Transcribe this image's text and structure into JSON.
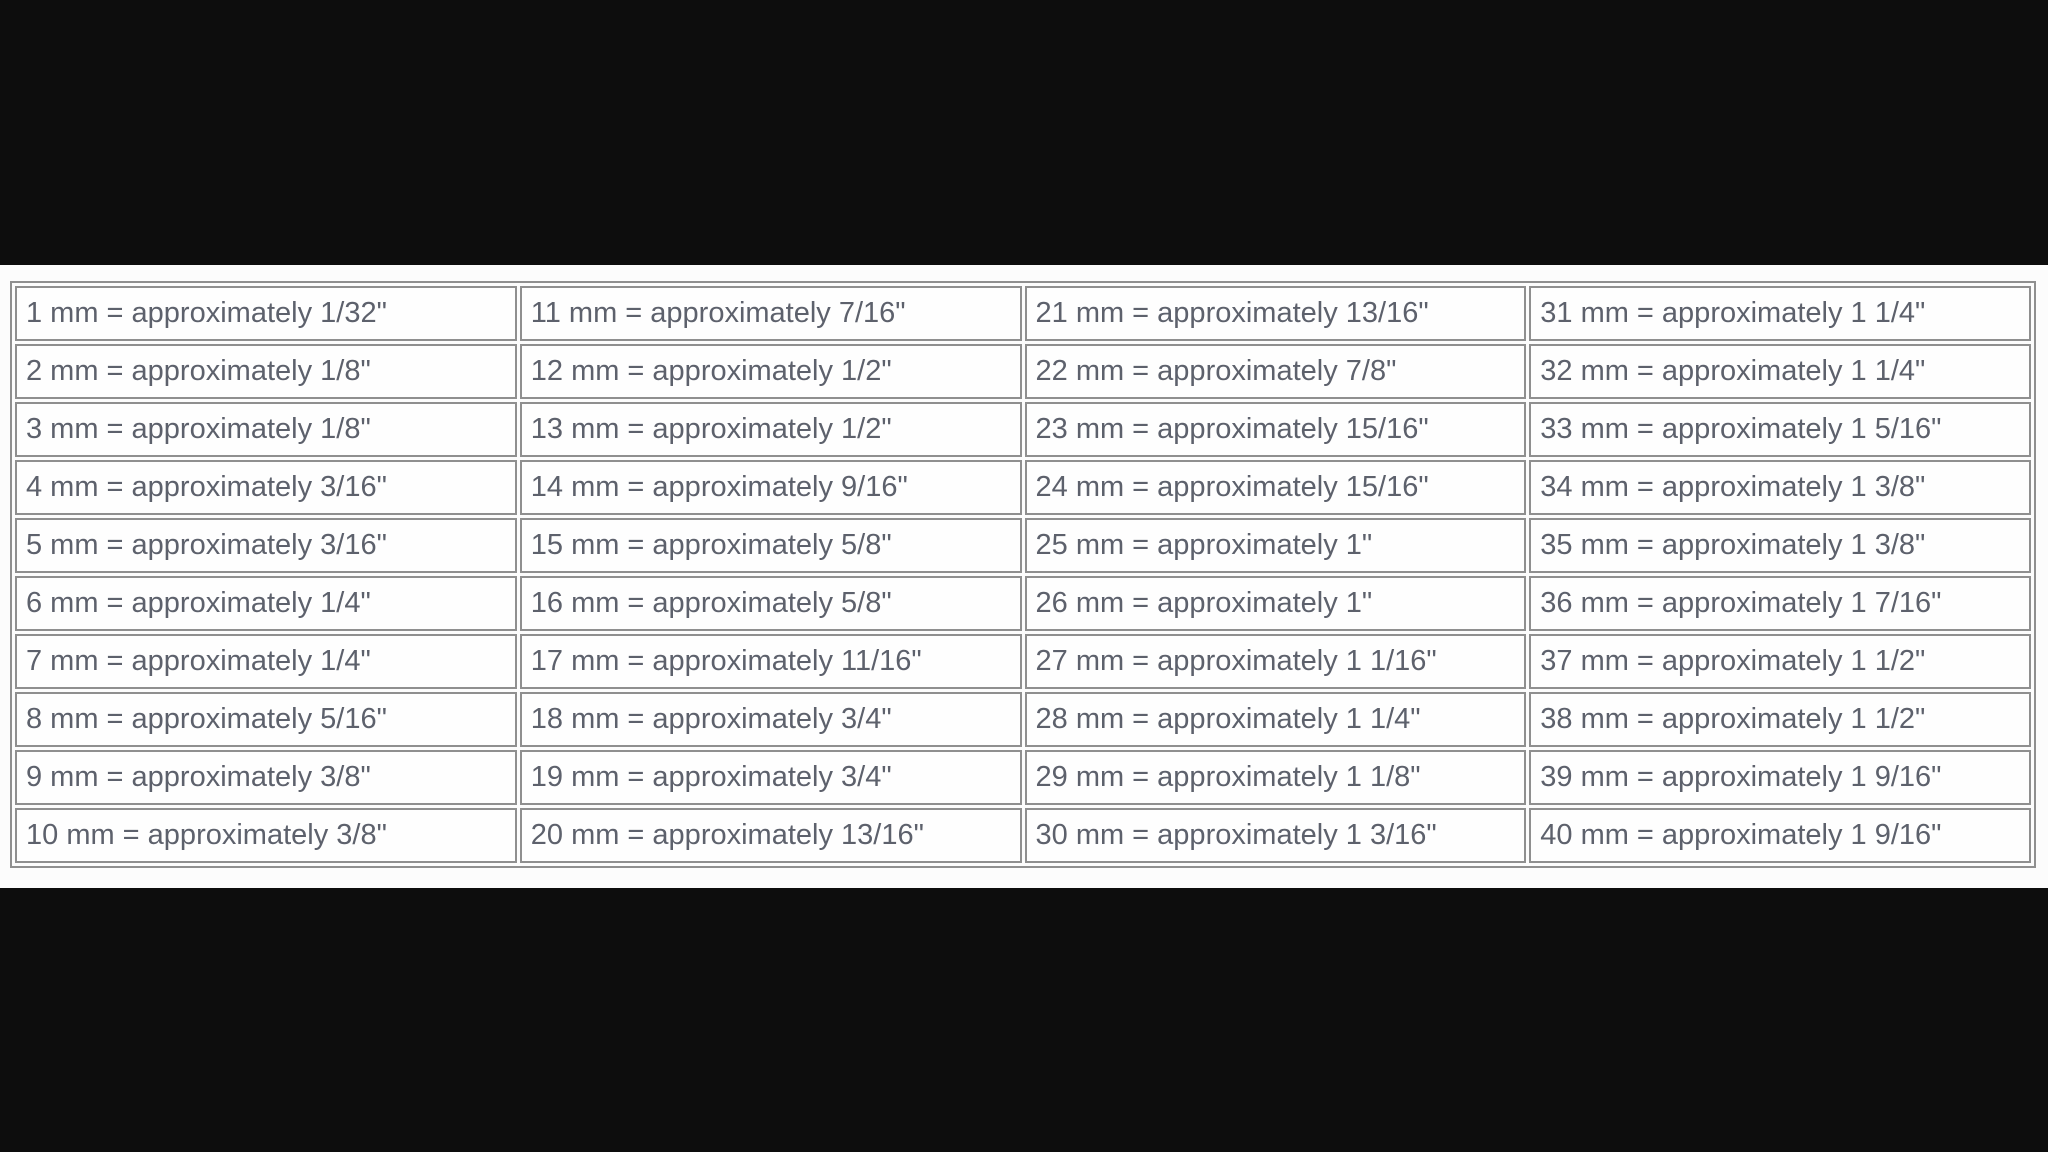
{
  "page": {
    "background_color": "#0d0d0d",
    "sheet_background_color": "#fcfcfc"
  },
  "conversion_table": {
    "border_color": "#8f8f8f",
    "cell_background_color": "#fefefe",
    "text_color": "#5d616c",
    "columns": [
      {
        "cells": [
          "1 mm = approximately 1/32\"",
          "2 mm = approximately 1/8\"",
          "3 mm = approximately 1/8\"",
          "4 mm = approximately 3/16\"",
          "5 mm = approximately 3/16\"",
          "6 mm = approximately 1/4\"",
          "7 mm = approximately 1/4\"",
          "8 mm = approximately 5/16\"",
          "9 mm = approximately 3/8\"",
          "10 mm = approximately 3/8\""
        ]
      },
      {
        "cells": [
          "11 mm = approximately 7/16\"",
          "12 mm = approximately 1/2\"",
          "13 mm = approximately 1/2\"",
          "14 mm = approximately 9/16\"",
          "15 mm = approximately 5/8\"",
          "16 mm = approximately 5/8\"",
          "17 mm = approximately 11/16\"",
          "18 mm = approximately 3/4\"",
          "19 mm = approximately 3/4\"",
          "20 mm = approximately 13/16\""
        ]
      },
      {
        "cells": [
          "21 mm = approximately 13/16\"",
          "22 mm = approximately 7/8\"",
          "23 mm = approximately 15/16\"",
          "24 mm = approximately 15/16\"",
          "25 mm = approximately 1\"",
          "26 mm = approximately 1\"",
          "27 mm = approximately 1 1/16\"",
          "28 mm = approximately 1 1/4\"",
          "29 mm = approximately 1 1/8\"",
          "30 mm = approximately 1 3/16\""
        ]
      },
      {
        "cells": [
          "31 mm = approximately 1 1/4\"",
          "32 mm = approximately 1 1/4\"",
          "33 mm = approximately 1 5/16\"",
          "34 mm = approximately 1 3/8\"",
          "35 mm = approximately 1 3/8\"",
          "36 mm = approximately 1 7/16\"",
          "37 mm = approximately 1 1/2\"",
          "38 mm = approximately 1 1/2\"",
          "39 mm = approximately 1 9/16\"",
          "40 mm = approximately 1 9/16\""
        ]
      }
    ]
  },
  "chart_data": {
    "type": "table",
    "rows": 10,
    "columns": 4,
    "mm_values": [
      1,
      2,
      3,
      4,
      5,
      6,
      7,
      8,
      9,
      10,
      11,
      12,
      13,
      14,
      15,
      16,
      17,
      18,
      19,
      20,
      21,
      22,
      23,
      24,
      25,
      26,
      27,
      28,
      29,
      30,
      31,
      32,
      33,
      34,
      35,
      36,
      37,
      38,
      39,
      40
    ],
    "inch_approximations": [
      "1/32\"",
      "1/8\"",
      "1/8\"",
      "3/16\"",
      "3/16\"",
      "1/4\"",
      "1/4\"",
      "5/16\"",
      "3/8\"",
      "3/8\"",
      "7/16\"",
      "1/2\"",
      "1/2\"",
      "9/16\"",
      "5/8\"",
      "5/8\"",
      "11/16\"",
      "3/4\"",
      "3/4\"",
      "13/16\"",
      "13/16\"",
      "7/8\"",
      "15/16\"",
      "15/16\"",
      "1\"",
      "1\"",
      "1 1/16\"",
      "1 1/4\"",
      "1 1/8\"",
      "1 3/16\"",
      "1 1/4\"",
      "1 1/4\"",
      "1 5/16\"",
      "1 3/8\"",
      "1 3/8\"",
      "1 7/16\"",
      "1 1/2\"",
      "1 1/2\"",
      "1 9/16\"",
      "1 9/16\""
    ]
  }
}
